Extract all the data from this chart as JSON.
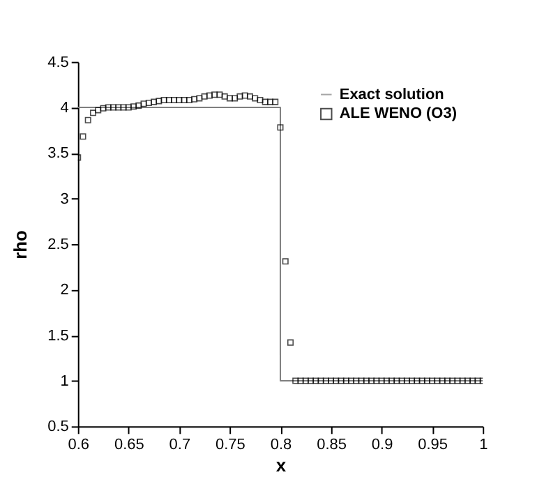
{
  "chart_data": {
    "type": "scatter",
    "xlabel": "x",
    "ylabel": "rho",
    "xlim": [
      0.6,
      1
    ],
    "ylim": [
      0.5,
      4.5
    ],
    "xticks": [
      0.6,
      0.65,
      0.7,
      0.75,
      0.8,
      0.85,
      0.9,
      0.95,
      1
    ],
    "yticks": [
      0.5,
      1,
      1.5,
      2,
      2.5,
      3,
      3.5,
      4,
      4.5
    ],
    "legend": "top right",
    "marker": "square",
    "series": [
      {
        "name": "Exact solution",
        "type": "line",
        "marker": "none",
        "color": "#7f7f7f",
        "x": [
          0.6,
          0.8,
          0.8,
          1
        ],
        "values": [
          4,
          4,
          1,
          1
        ]
      },
      {
        "name": "ALE WENO (O3)",
        "color": "#000000",
        "x": [
          0.6,
          0.605,
          0.61,
          0.615,
          0.62,
          0.625,
          0.63,
          0.635,
          0.64,
          0.645,
          0.65,
          0.655,
          0.66,
          0.665,
          0.67,
          0.675,
          0.68,
          0.685,
          0.69,
          0.695,
          0.7,
          0.705,
          0.71,
          0.715,
          0.72,
          0.725,
          0.73,
          0.735,
          0.74,
          0.745,
          0.75,
          0.755,
          0.76,
          0.765,
          0.77,
          0.775,
          0.78,
          0.785,
          0.79,
          0.795,
          0.8,
          0.805,
          0.81,
          0.815,
          0.82,
          0.825,
          0.83,
          0.835,
          0.84,
          0.845,
          0.85,
          0.855,
          0.86,
          0.865,
          0.87,
          0.875,
          0.88,
          0.885,
          0.89,
          0.895,
          0.9,
          0.905,
          0.91,
          0.915,
          0.92,
          0.925,
          0.93,
          0.935,
          0.94,
          0.945,
          0.95,
          0.955,
          0.96,
          0.965,
          0.97,
          0.975,
          0.98,
          0.985,
          0.99,
          0.995,
          1
        ],
        "values": [
          3.45,
          3.68,
          3.86,
          3.94,
          3.97,
          3.99,
          4.0,
          4.0,
          4.0,
          4.0,
          4.0,
          4.01,
          4.02,
          4.04,
          4.05,
          4.06,
          4.07,
          4.08,
          4.08,
          4.08,
          4.08,
          4.08,
          4.08,
          4.09,
          4.1,
          4.12,
          4.13,
          4.14,
          4.14,
          4.12,
          4.1,
          4.1,
          4.12,
          4.13,
          4.12,
          4.1,
          4.08,
          4.06,
          4.06,
          4.06,
          3.78,
          2.31,
          1.42,
          1,
          1,
          1,
          1,
          1,
          1,
          1,
          1,
          1,
          1,
          1,
          1,
          1,
          1,
          1,
          1,
          1,
          1,
          1,
          1,
          1,
          1,
          1,
          1,
          1,
          1,
          1,
          1,
          1,
          1,
          1,
          1,
          1,
          1,
          1,
          1,
          1,
          1
        ]
      }
    ]
  }
}
